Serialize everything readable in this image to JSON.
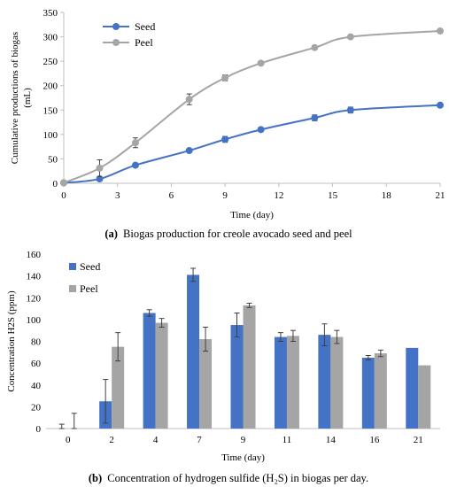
{
  "chart_data": [
    {
      "type": "line",
      "caption_prefix": "(a)",
      "caption": "Biogas production for creole avocado seed and peel",
      "xlabel": "Time (day)",
      "ylabel": "Cumulative productions of biogas (mL)",
      "xticks": [
        0,
        3,
        6,
        9,
        12,
        15,
        18,
        21
      ],
      "xlim": [
        0,
        21
      ],
      "yticks": [
        0,
        50,
        100,
        150,
        200,
        250,
        300,
        350
      ],
      "ylim": [
        0,
        350
      ],
      "grid": false,
      "legend_position": "top-left",
      "series": [
        {
          "name": "Seed",
          "color": "#4472c4",
          "x": [
            0,
            2,
            4,
            7,
            9,
            11,
            14,
            16,
            21
          ],
          "y": [
            1,
            9,
            37,
            67,
            90,
            110,
            134,
            150,
            160
          ],
          "err": [
            0,
            2,
            2,
            2,
            6,
            3,
            6,
            6,
            0
          ]
        },
        {
          "name": "Peel",
          "color": "#a5a5a5",
          "x": [
            0,
            2,
            4,
            7,
            9,
            11,
            14,
            16,
            21
          ],
          "y": [
            1,
            31,
            83,
            172,
            216,
            246,
            278,
            300,
            312
          ],
          "err": [
            0,
            17,
            10,
            11,
            6,
            3,
            3,
            2,
            0
          ]
        }
      ]
    },
    {
      "type": "bar",
      "caption_prefix": "(b)",
      "caption": "Concentration of hydrogen sulfide (H₂S) in biogas per day.",
      "xlabel": "Time (day)",
      "ylabel": "Concentration H2S (ppm)",
      "categories": [
        "0",
        "2",
        "4",
        "7",
        "9",
        "11",
        "14",
        "16",
        "21"
      ],
      "yticks": [
        0,
        20,
        40,
        60,
        80,
        100,
        120,
        140,
        160
      ],
      "ylim": [
        0,
        160
      ],
      "grid": false,
      "legend_position": "top-left",
      "series": [
        {
          "name": "Seed",
          "color": "#4472c4",
          "values": [
            0,
            25,
            106,
            141,
            95,
            84,
            86,
            65,
            74
          ],
          "err": [
            4,
            20,
            3,
            6,
            11,
            4,
            10,
            2,
            0
          ]
        },
        {
          "name": "Peel",
          "color": "#a5a5a5",
          "values": [
            0,
            75,
            97,
            82,
            113,
            85,
            84,
            69,
            58
          ],
          "err": [
            14,
            13,
            4,
            11,
            2,
            5,
            6,
            3,
            0
          ]
        }
      ]
    }
  ]
}
